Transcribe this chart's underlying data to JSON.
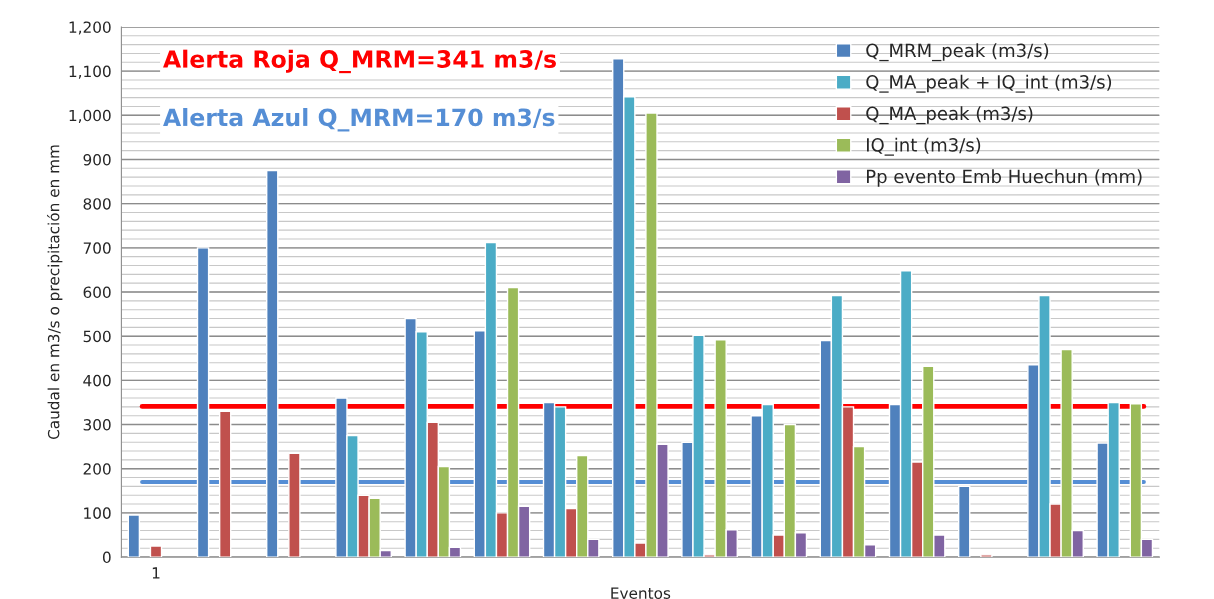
{
  "chart_data": {
    "type": "bar",
    "xlabel": "Eventos",
    "ylabel": "Caudal en m3/s o precipitación en mm",
    "categories": [
      "1",
      null,
      null,
      null,
      null,
      null,
      null,
      null,
      null,
      null,
      null,
      null,
      null,
      null,
      null
    ],
    "series": [
      {
        "name": "Q_MRM_peak (m3/s)",
        "color": "#4f81bd",
        "values": [
          95,
          700,
          875,
          360,
          540,
          512,
          350,
          1128,
          260,
          320,
          490,
          345,
          160,
          435,
          258
        ]
      },
      {
        "name": "Q_MA_peak + IQ_int (m3/s)",
        "color": "#4bacc6",
        "values": [
          null,
          null,
          null,
          275,
          510,
          712,
          340,
          1042,
          502,
          345,
          592,
          648,
          null,
          592,
          350
        ]
      },
      {
        "name": "Q_MA_peak (m3/s)",
        "color": "#c0504d",
        "values": [
          25,
          330,
          235,
          140,
          305,
          100,
          110,
          32,
          5,
          50,
          340,
          215,
          5,
          120,
          null
        ]
      },
      {
        "name": "IQ_int (m3/s)",
        "color": "#9bbb59",
        "values": [
          null,
          null,
          null,
          133,
          205,
          610,
          230,
          1005,
          492,
          300,
          250,
          432,
          null,
          470,
          347
        ]
      },
      {
        "name": "Pp evento Emb Huechun (mm)",
        "color": "#8064a2",
        "values": [
          null,
          null,
          null,
          15,
          22,
          115,
          40,
          255,
          62,
          55,
          28,
          50,
          null,
          60,
          40
        ]
      }
    ],
    "ylim": [
      0,
      1200
    ],
    "yticks": [
      0,
      100,
      200,
      300,
      400,
      500,
      600,
      700,
      800,
      900,
      {
        "value": 1000,
        "label": "1,000"
      },
      {
        "value": 1100,
        "label": "1,100"
      },
      {
        "value": 1200,
        "label": "1,200"
      }
    ],
    "ref_lines": [
      {
        "axis": "y",
        "value": 341,
        "label": "Alerta Roja Q_MRM=341 m3/s",
        "color": "#ff0000"
      },
      {
        "axis": "y",
        "value": 170,
        "label": "Alerta Azul Q_MRM=170 m3/s",
        "color": "#558ed5"
      }
    ],
    "grid": "y",
    "legend": "top right"
  }
}
